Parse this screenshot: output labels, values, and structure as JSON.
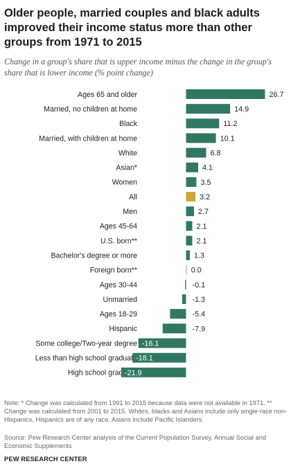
{
  "header": {
    "title": "Older people, married couples and black adults improved their income status more than other groups from 1971 to 2015",
    "subtitle": "Change in a group's share that is upper income minus the change in the group's share that is lower income (% point change)"
  },
  "chart_data": {
    "type": "bar",
    "orientation": "horizontal",
    "categories": [
      "Ages 65 and older",
      "Married, no children at home",
      "Black",
      "Married, with children at home",
      "White",
      "Asian*",
      "Women",
      "All",
      "Men",
      "Ages 45-64",
      "U.S. born**",
      "Bachelor's degree or more",
      "Foreign born**",
      "Ages 30-44",
      "Unmarried",
      "Ages 18-29",
      "Hispanic",
      "Some college/Two-year degree",
      "Less than high school graduate",
      "High school graduate"
    ],
    "values": [
      26.7,
      14.9,
      11.2,
      10.1,
      6.8,
      4.1,
      3.5,
      3.2,
      2.7,
      2.1,
      2.1,
      1.3,
      0.0,
      -0.1,
      -1.3,
      -5.4,
      -7.9,
      -16.1,
      -18.1,
      -21.9
    ],
    "value_labels": [
      "26.7",
      "14.9",
      "11.2",
      "10.1",
      "6.8",
      "4.1",
      "3.5",
      "3.2",
      "2.7",
      "2.1",
      "2.1",
      "1.3",
      "0.0",
      "-0.1",
      "-1.3",
      "-5.4",
      "-7.9",
      "-16.1",
      "-18.1",
      "-21.9"
    ],
    "highlight": "All",
    "colors": {
      "bar": "#2f7864",
      "highlight": "#cda73a",
      "inside_label": "#ffffff"
    },
    "xlim": [
      -21.9,
      26.7
    ],
    "grid": false,
    "legend": "none"
  },
  "footer": {
    "note": "Note: * Change was calculated from 1991 to 2015 because data were not available in 1971. ** Change was calculated from 2001 to 2015. Whites, blacks and Asians include only single-race non-Hispanics. Hispanics are of any race. Asians include Pacific Islanders.",
    "source": "Source: Pew Research Center analysis of the Current Population Survey, Annual Social and Economic Supplements",
    "brand": "PEW RESEARCH CENTER"
  }
}
